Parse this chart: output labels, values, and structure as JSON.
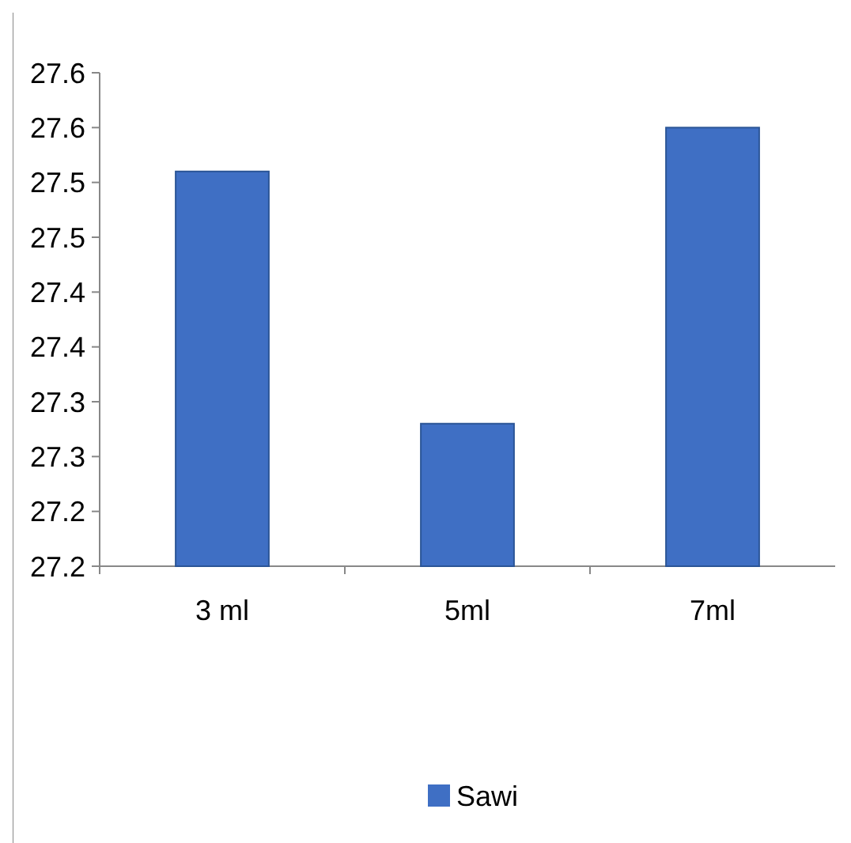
{
  "chart_data": {
    "type": "bar",
    "categories": [
      "3 ml",
      "5ml",
      "7ml"
    ],
    "series": [
      {
        "name": "Sawi",
        "color": "#3f6fc4",
        "values": [
          27.51,
          27.28,
          27.55
        ]
      }
    ],
    "ylim": [
      27.15,
      27.6
    ],
    "yticks": [
      {
        "value": 27.15,
        "label": "27.2"
      },
      {
        "value": 27.2,
        "label": "27.2"
      },
      {
        "value": 27.25,
        "label": "27.3"
      },
      {
        "value": 27.3,
        "label": "27.3"
      },
      {
        "value": 27.35,
        "label": "27.4"
      },
      {
        "value": 27.4,
        "label": "27.4"
      },
      {
        "value": 27.45,
        "label": "27.5"
      },
      {
        "value": 27.5,
        "label": "27.5"
      },
      {
        "value": 27.55,
        "label": "27.6"
      },
      {
        "value": 27.6,
        "label": "27.6"
      }
    ],
    "legend": "bottom"
  }
}
